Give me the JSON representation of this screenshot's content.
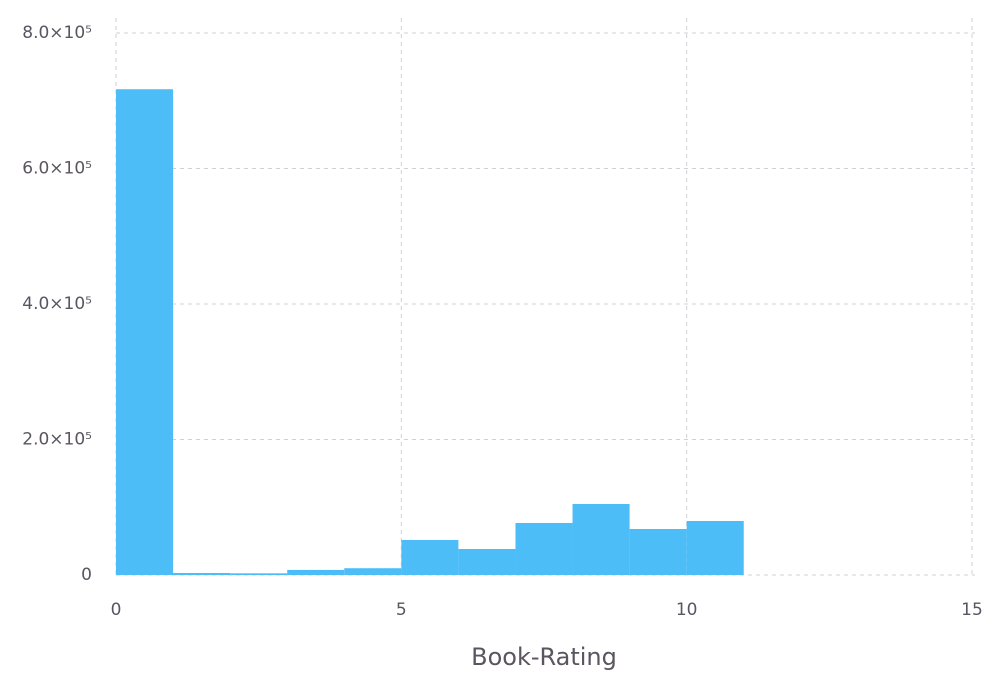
{
  "chart_data": {
    "type": "histogram",
    "x_label": "Book-Rating",
    "bins": [
      0,
      1,
      2,
      3,
      4,
      5,
      6,
      7,
      8,
      9,
      10,
      11
    ],
    "values": [
      717000,
      3000,
      2500,
      7500,
      10000,
      51700,
      38400,
      76800,
      104800,
      67900,
      79700
    ],
    "color": "#4dbdf7",
    "xlim": [
      0,
      15
    ],
    "xticks": [
      0,
      5,
      10,
      15
    ],
    "ylim": [
      0,
      800000
    ],
    "yticks": [
      0,
      {
        "value": 200000,
        "label": "2.0×10⁵"
      },
      {
        "value": 400000,
        "label": "4.0×10⁵"
      },
      {
        "value": 600000,
        "label": "6.0×10⁵"
      },
      {
        "value": 800000,
        "label": "8.0×10⁵"
      }
    ],
    "grid": true
  }
}
